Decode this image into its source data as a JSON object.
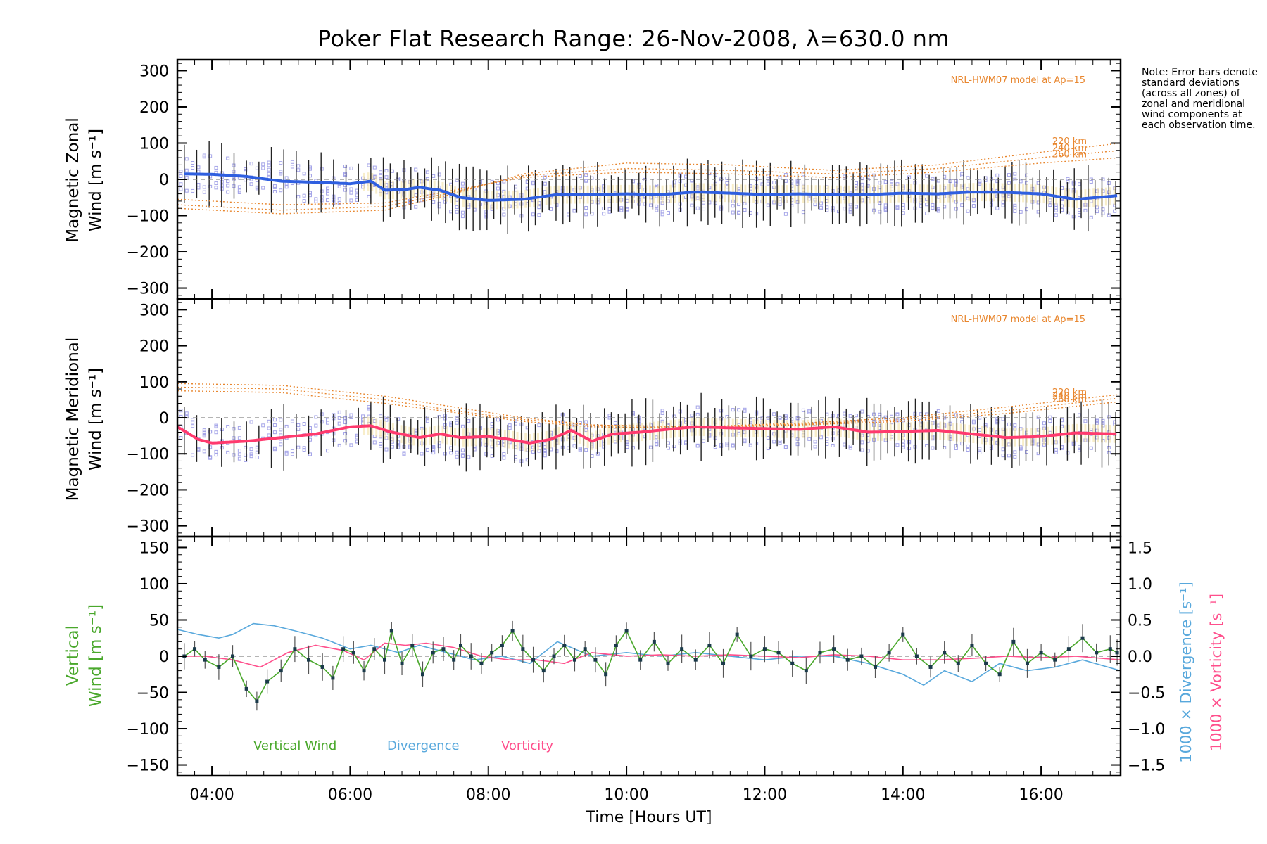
{
  "title": "Poker Flat Research Range: 26-Nov-2008, λ=630.0 nm",
  "note": "Note: Error bars denote standard deviations (across all zones) of zonal and meridional wind components at each observation time.",
  "colors": {
    "zonal": "#2f5fe0",
    "zonal_light": "#4aa8e0",
    "meridional": "#ff3a6e",
    "vertical": "#4aa82c",
    "divergence": "#58a8dc",
    "vorticity": "#ff4f8c",
    "model": "#e8862e",
    "scatter": "#a4a4e8",
    "errorbar": "#222222"
  },
  "chart_data": [
    {
      "type": "line",
      "panel": "zonal",
      "ylabel_line1": "Magnetic Zonal",
      "ylabel_line2": "Wind [m s⁻¹]",
      "ylim": [
        -330,
        330
      ],
      "yticks": [
        300,
        200,
        100,
        0,
        -100,
        -200,
        -300
      ],
      "xlim_hours": [
        3.5,
        17.15
      ],
      "model_label": "NRL-HWM07 model at Ap=15",
      "model_altitudes": [
        "220 km",
        "240 km",
        "260 km"
      ],
      "mean_series": {
        "name": "Zonal wind",
        "x": [
          3.6,
          4.0,
          4.5,
          5.0,
          5.5,
          6.0,
          6.3,
          6.5,
          6.8,
          7.0,
          7.3,
          7.6,
          8.0,
          8.5,
          9.0,
          9.5,
          10.0,
          10.5,
          11.0,
          11.5,
          12.0,
          12.5,
          13.0,
          13.5,
          14.0,
          14.5,
          15.0,
          15.5,
          16.0,
          16.5,
          17.1
        ],
        "y": [
          15,
          14,
          8,
          -5,
          -8,
          -12,
          -5,
          -30,
          -28,
          -22,
          -30,
          -50,
          -58,
          -55,
          -42,
          -42,
          -40,
          -42,
          -35,
          -38,
          -42,
          -40,
          -42,
          -42,
          -38,
          -40,
          -35,
          -36,
          -40,
          -55,
          -45
        ]
      },
      "model_curves": [
        {
          "name": "220 km",
          "x": [
            3.5,
            5,
            6.5,
            7.5,
            8.5,
            10,
            11.5,
            13,
            14.5,
            16,
            17.15
          ],
          "y": [
            -80,
            -95,
            -85,
            -40,
            15,
            45,
            40,
            25,
            40,
            75,
            100
          ]
        },
        {
          "name": "240 km",
          "x": [
            3.5,
            5,
            6.5,
            7.5,
            8.5,
            10,
            11.5,
            13,
            14.5,
            16,
            17.15
          ],
          "y": [
            -70,
            -85,
            -75,
            -35,
            10,
            30,
            25,
            15,
            30,
            60,
            80
          ]
        },
        {
          "name": "260 km",
          "x": [
            3.5,
            5,
            6.5,
            7.5,
            8.5,
            10,
            11.5,
            13,
            14.5,
            16,
            17.15
          ],
          "y": [
            -55,
            -70,
            -65,
            -30,
            5,
            20,
            15,
            5,
            20,
            45,
            60
          ]
        }
      ]
    },
    {
      "type": "line",
      "panel": "meridional",
      "ylabel_line1": "Magnetic Meridional",
      "ylabel_line2": "Wind [m s⁻¹]",
      "ylim": [
        -330,
        330
      ],
      "yticks": [
        300,
        200,
        100,
        0,
        -100,
        -200,
        -300
      ],
      "xlim_hours": [
        3.5,
        17.15
      ],
      "model_label": "NRL-HWM07 model at Ap=15",
      "model_altitudes": [
        "220 km",
        "240 km",
        "260 km"
      ],
      "mean_series": {
        "name": "Meridional wind",
        "x": [
          3.5,
          3.8,
          4.0,
          4.5,
          5.0,
          5.5,
          6.0,
          6.3,
          6.6,
          7.0,
          7.3,
          7.6,
          8.0,
          8.3,
          8.6,
          8.9,
          9.2,
          9.5,
          9.8,
          10.2,
          10.6,
          11.0,
          11.5,
          12.0,
          12.5,
          13.0,
          13.5,
          14.0,
          14.5,
          15.0,
          15.5,
          16.0,
          16.5,
          17.1
        ],
        "y": [
          -25,
          -60,
          -70,
          -65,
          -55,
          -45,
          -25,
          -22,
          -40,
          -55,
          -45,
          -55,
          -52,
          -60,
          -70,
          -60,
          -35,
          -65,
          -45,
          -40,
          -32,
          -25,
          -28,
          -30,
          -32,
          -25,
          -40,
          -38,
          -35,
          -45,
          -55,
          -52,
          -42,
          -45
        ]
      },
      "model_curves": [
        {
          "name": "220 km",
          "x": [
            3.5,
            5,
            6.5,
            7.5,
            8.5,
            9.5,
            11,
            12.5,
            14,
            15.5,
            17.15
          ],
          "y": [
            95,
            90,
            60,
            30,
            0,
            -20,
            -25,
            -15,
            0,
            30,
            65
          ]
        },
        {
          "name": "240 km",
          "x": [
            3.5,
            5,
            6.5,
            7.5,
            8.5,
            9.5,
            11,
            12.5,
            14,
            15.5,
            17.15
          ],
          "y": [
            85,
            80,
            50,
            20,
            -5,
            -20,
            -25,
            -18,
            -5,
            20,
            55
          ]
        },
        {
          "name": "260 km",
          "x": [
            3.5,
            5,
            6.5,
            7.5,
            8.5,
            9.5,
            11,
            12.5,
            14,
            15.5,
            17.15
          ],
          "y": [
            75,
            70,
            40,
            15,
            -10,
            -25,
            -28,
            -20,
            -10,
            12,
            45
          ]
        }
      ]
    },
    {
      "type": "line",
      "panel": "vertical",
      "ylabel_line1": "Vertical",
      "ylabel_line2": "Wind [m s⁻¹]",
      "ylim": [
        -165,
        165
      ],
      "yticks": [
        150,
        100,
        50,
        0,
        -50,
        -100,
        -150
      ],
      "xlim_hours": [
        3.5,
        17.15
      ],
      "y2lim": [
        -1.65,
        1.65
      ],
      "y2ticks": [
        "1.5",
        "1.0",
        "0.5",
        "0.0",
        "−0.5",
        "−1.0",
        "−1.5"
      ],
      "y2label_divergence": "1000 × Divergence [s⁻¹]",
      "y2label_vorticity": "1000 × Vorticity [s⁻¹]",
      "series": [
        {
          "name": "Vertical Wind",
          "x": [
            3.6,
            3.75,
            3.9,
            4.1,
            4.3,
            4.5,
            4.65,
            4.8,
            5.0,
            5.2,
            5.4,
            5.6,
            5.75,
            5.9,
            6.05,
            6.2,
            6.35,
            6.5,
            6.6,
            6.75,
            6.9,
            7.05,
            7.2,
            7.35,
            7.5,
            7.6,
            7.75,
            7.9,
            8.05,
            8.2,
            8.35,
            8.5,
            8.65,
            8.8,
            8.95,
            9.1,
            9.25,
            9.4,
            9.55,
            9.7,
            9.85,
            10.0,
            10.2,
            10.4,
            10.6,
            10.8,
            11.0,
            11.2,
            11.4,
            11.6,
            11.8,
            12.0,
            12.2,
            12.4,
            12.6,
            12.8,
            13.0,
            13.2,
            13.4,
            13.6,
            13.8,
            14.0,
            14.2,
            14.4,
            14.6,
            14.8,
            15.0,
            15.2,
            15.4,
            15.6,
            15.8,
            16.0,
            16.2,
            16.4,
            16.6,
            16.8,
            17.0,
            17.1
          ],
          "y": [
            0,
            10,
            -5,
            -15,
            0,
            -45,
            -62,
            -35,
            -20,
            10,
            -5,
            -15,
            -30,
            10,
            5,
            -20,
            10,
            -5,
            35,
            -10,
            15,
            -25,
            5,
            10,
            -5,
            15,
            0,
            -10,
            5,
            15,
            35,
            10,
            -5,
            -20,
            0,
            15,
            -5,
            10,
            -5,
            -25,
            15,
            35,
            -5,
            20,
            -10,
            10,
            -5,
            15,
            -10,
            30,
            0,
            10,
            5,
            -10,
            -20,
            5,
            10,
            -5,
            0,
            -15,
            5,
            30,
            0,
            -15,
            5,
            -10,
            15,
            -10,
            -25,
            20,
            -10,
            5,
            -5,
            10,
            25,
            5,
            10,
            5
          ]
        },
        {
          "name": "Divergence",
          "x": [
            3.5,
            3.8,
            4.1,
            4.3,
            4.6,
            4.9,
            5.2,
            5.6,
            6.0,
            6.3,
            6.7,
            7.0,
            7.4,
            7.8,
            8.2,
            8.6,
            9.0,
            9.5,
            10.0,
            10.5,
            11.0,
            11.5,
            12.0,
            12.5,
            13.0,
            13.5,
            14.0,
            14.3,
            14.6,
            15.0,
            15.4,
            15.8,
            16.2,
            16.6,
            17.15
          ],
          "y": [
            0.37,
            0.3,
            0.25,
            0.3,
            0.45,
            0.42,
            0.35,
            0.25,
            0.1,
            0.15,
            0.05,
            0.15,
            0.05,
            -0.05,
            0.0,
            -0.1,
            0.2,
            0.0,
            0.05,
            0.0,
            0.05,
            0.0,
            -0.05,
            0.0,
            0.0,
            -0.1,
            -0.25,
            -0.4,
            -0.2,
            -0.35,
            -0.1,
            -0.2,
            -0.15,
            -0.05,
            -0.2
          ]
        },
        {
          "name": "Vorticity",
          "x": [
            3.5,
            3.9,
            4.3,
            4.7,
            5.1,
            5.5,
            5.9,
            6.2,
            6.5,
            6.8,
            7.1,
            7.5,
            7.9,
            8.3,
            8.7,
            9.1,
            9.5,
            10.0,
            10.5,
            11.0,
            11.5,
            12.0,
            12.5,
            13.0,
            13.5,
            14.0,
            14.5,
            15.0,
            15.5,
            16.0,
            16.5,
            17.15
          ],
          "y": [
            0.0,
            0.0,
            -0.05,
            -0.15,
            0.05,
            0.15,
            0.08,
            -0.05,
            0.18,
            0.15,
            0.18,
            0.12,
            0.0,
            -0.05,
            -0.05,
            -0.1,
            0.05,
            0.0,
            0.02,
            0.0,
            0.02,
            0.0,
            -0.02,
            0.02,
            0.0,
            -0.05,
            -0.05,
            -0.03,
            0.0,
            -0.02,
            0.0,
            -0.05
          ]
        }
      ],
      "legend": [
        "Vertical Wind",
        "Divergence",
        "Vorticity"
      ]
    }
  ],
  "xaxis": {
    "label": "Time [Hours UT]",
    "ticks": [
      "04:00",
      "06:00",
      "08:00",
      "10:00",
      "12:00",
      "14:00",
      "16:00"
    ],
    "tick_hours": [
      4,
      6,
      8,
      10,
      12,
      14,
      16
    ]
  }
}
